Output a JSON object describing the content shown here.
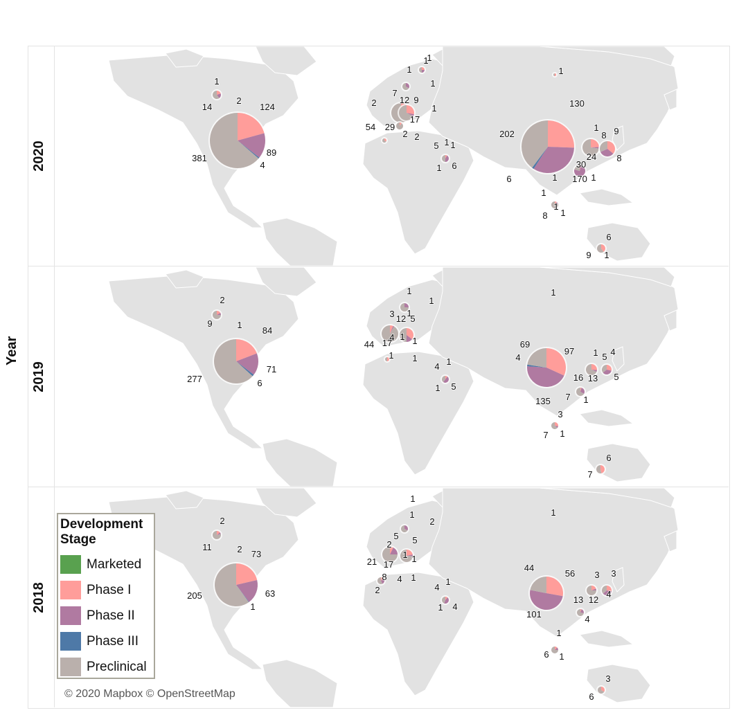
{
  "axis": {
    "title": "Year"
  },
  "legend": {
    "title": "Development\nStage",
    "items": [
      {
        "label": "Marketed",
        "color": "#59a14f"
      },
      {
        "label": "Phase I",
        "color": "#ff9d9a"
      },
      {
        "label": "Phase II",
        "color": "#b07aa1"
      },
      {
        "label": "Phase III",
        "color": "#4e79a7"
      },
      {
        "label": "Preclinical",
        "color": "#bab0ac"
      }
    ]
  },
  "credit": "© 2020 Mapbox © OpenStreetMap",
  "map_style": {
    "land": "#e2e2e2",
    "water": "#ffffff",
    "border": "#ffffff"
  },
  "years": [
    {
      "year": "2020",
      "labels": [
        "1",
        "14",
        "2",
        "124",
        "381",
        "89",
        "4",
        "2",
        "1",
        "1",
        "1",
        "7",
        "12",
        "9",
        "1",
        "54",
        "29",
        "17",
        "2",
        "2",
        "5",
        "1",
        "1",
        "6",
        "1",
        "1",
        "1",
        "202",
        "130",
        "1",
        "8",
        "9",
        "24",
        "8",
        "1",
        "6",
        "30",
        "170",
        "1",
        "1",
        "1",
        "8",
        "1",
        "6",
        "9",
        "1"
      ]
    },
    {
      "year": "2019",
      "labels": [
        "2",
        "9",
        "1",
        "84",
        "277",
        "71",
        "6",
        "1",
        "1",
        "1",
        "3",
        "12",
        "5",
        "44",
        "17",
        "1",
        "4",
        "1",
        "1",
        "1",
        "4",
        "1",
        "1",
        "5",
        "1",
        "69",
        "97",
        "4",
        "1",
        "5",
        "4",
        "13",
        "5",
        "16",
        "135",
        "7",
        "1",
        "3",
        "7",
        "1",
        "6",
        "7"
      ]
    },
    {
      "year": "2018",
      "labels": [
        "2",
        "11",
        "2",
        "73",
        "205",
        "63",
        "1",
        "1",
        "1",
        "2",
        "5",
        "5",
        "2",
        "21",
        "17",
        "1",
        "1",
        "8",
        "4",
        "1",
        "2",
        "4",
        "1",
        "1",
        "4",
        "1",
        "44",
        "56",
        "3",
        "3",
        "13",
        "12",
        "4",
        "101",
        "4",
        "1",
        "6",
        "1",
        "3",
        "6"
      ]
    }
  ]
}
